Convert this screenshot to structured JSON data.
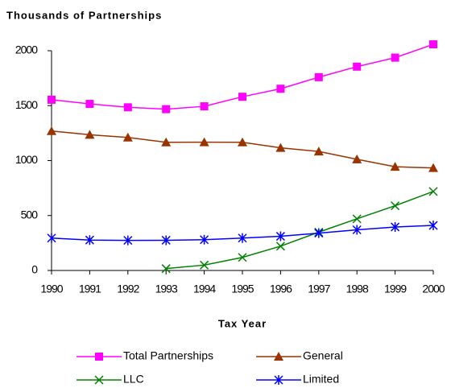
{
  "chart_data": {
    "type": "line",
    "title": "Thousands of Partnerships",
    "x_label": "Tax Year",
    "x": [
      1990,
      1991,
      1992,
      1993,
      1994,
      1995,
      1996,
      1997,
      1998,
      1999,
      2000
    ],
    "xlim": [
      1990,
      2000
    ],
    "xticks": [
      1990,
      1991,
      1992,
      1993,
      1994,
      1995,
      1996,
      1997,
      1998,
      1999,
      2000
    ],
    "ylim": [
      0,
      2000
    ],
    "yticks": [
      0,
      500,
      1000,
      1500,
      2000
    ],
    "series": [
      {
        "name": "Total Partnerships",
        "color": "#ff00ff",
        "marker": "square",
        "values": [
          1554,
          1516,
          1485,
          1468,
          1494,
          1581,
          1654,
          1759,
          1855,
          1937,
          2058
        ]
      },
      {
        "name": "General",
        "color": "#993300",
        "marker": "triangle",
        "values": [
          1269,
          1235,
          1211,
          1167,
          1168,
          1167,
          1116,
          1083,
          1012,
          944,
          933
        ]
      },
      {
        "name": "LLC",
        "color": "#008000",
        "marker": "x",
        "values": [
          null,
          null,
          null,
          17,
          49,
          119,
          221,
          349,
          470,
          589,
          719
        ]
      },
      {
        "name": "Limited",
        "color": "#0000ff",
        "marker": "asterisk",
        "values": [
          295,
          277,
          274,
          275,
          280,
          295,
          311,
          340,
          370,
          396,
          410
        ]
      }
    ]
  }
}
